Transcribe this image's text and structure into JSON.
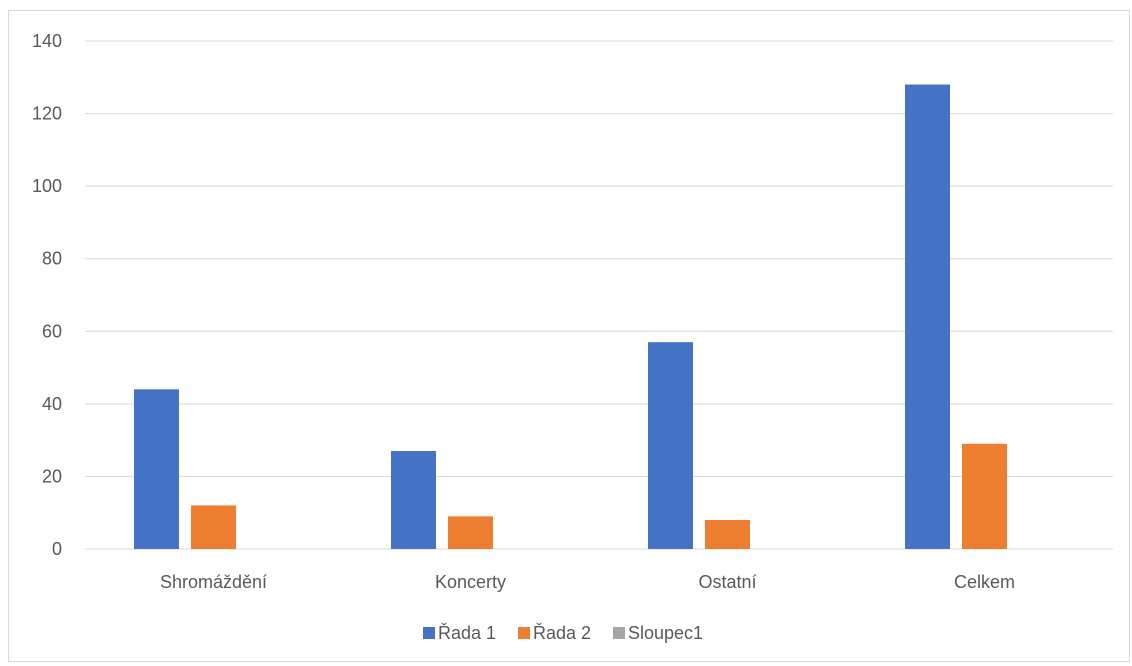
{
  "chart_data": {
    "type": "bar",
    "categories": [
      "Shromáždění",
      "Koncerty",
      "Ostatní",
      "Celkem"
    ],
    "series": [
      {
        "name": "Řada 1",
        "color": "#4472C4",
        "values": [
          44,
          27,
          57,
          128
        ]
      },
      {
        "name": "Řada 2",
        "color": "#ED7D31",
        "values": [
          12,
          9,
          8,
          29
        ]
      },
      {
        "name": "Sloupec1",
        "color": "#A5A5A5",
        "values": [
          0,
          0,
          0,
          0
        ]
      }
    ],
    "ylim": [
      0,
      140
    ],
    "yticks": [
      0,
      20,
      40,
      60,
      80,
      100,
      120,
      140
    ],
    "grid": true,
    "legend": "bottom",
    "colors": {
      "grid": "#d9d9d9",
      "text": "#595959"
    }
  }
}
